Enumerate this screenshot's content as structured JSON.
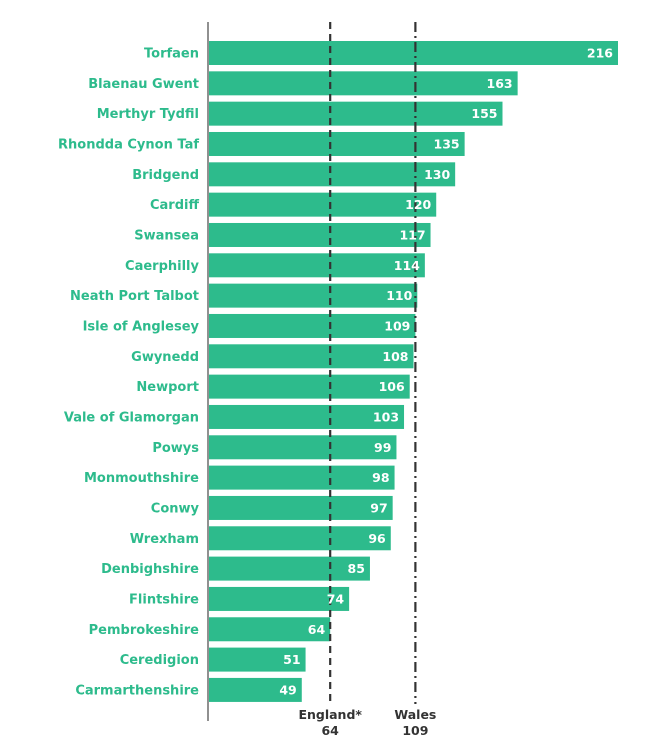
{
  "chart_data": {
    "type": "bar",
    "orientation": "horizontal",
    "title": "",
    "xlabel": "",
    "ylabel": "",
    "xlim": [
      0,
      220
    ],
    "grid": false,
    "legend": "none",
    "bar_color": "#2dbb8c",
    "categories": [
      "Torfaen",
      "Blaenau Gwent",
      "Merthyr Tydfil",
      "Rhondda Cynon Taf",
      "Bridgend",
      "Cardiff",
      "Swansea",
      "Caerphilly",
      "Neath Port Talbot",
      "Isle of Anglesey",
      "Gwynedd",
      "Newport",
      "Vale of Glamorgan",
      "Powys",
      "Monmouthshire",
      "Conwy",
      "Wrexham",
      "Denbighshire",
      "Flintshire",
      "Pembrokeshire",
      "Ceredigion",
      "Carmarthenshire"
    ],
    "values": [
      216,
      163,
      155,
      135,
      130,
      120,
      117,
      114,
      110,
      109,
      108,
      106,
      103,
      99,
      98,
      97,
      96,
      85,
      74,
      64,
      51,
      49
    ],
    "reference_lines": [
      {
        "name": "England*",
        "value": 64,
        "value_label": "64",
        "style": "dashed",
        "color": "#333333"
      },
      {
        "name": "Wales",
        "value": 109,
        "value_label": "109",
        "style": "dash-dot",
        "color": "#333333"
      }
    ]
  }
}
